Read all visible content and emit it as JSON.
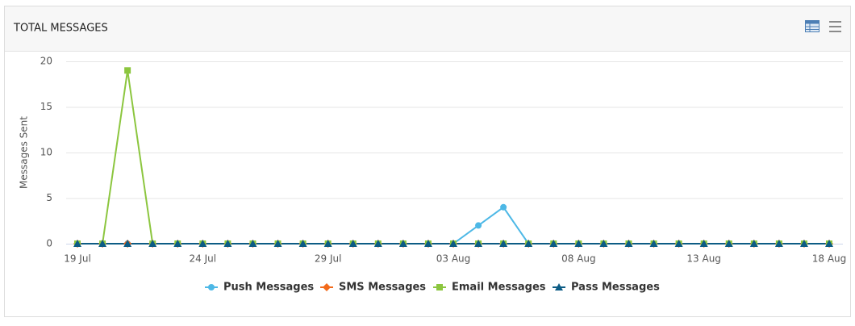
{
  "chart_data": {
    "type": "line",
    "title": "TOTAL MESSAGES",
    "y_label": "Messages Sent",
    "categories": [
      "19 Jul",
      null,
      null,
      null,
      null,
      "24 Jul",
      null,
      null,
      null,
      null,
      "29 Jul",
      null,
      null,
      null,
      null,
      "03 Aug",
      null,
      null,
      null,
      null,
      "08 Aug",
      null,
      null,
      null,
      null,
      "13 Aug",
      null,
      null,
      null,
      null,
      "18 Aug"
    ],
    "ylim": [
      0,
      20
    ],
    "yticks": [
      0,
      5,
      10,
      15,
      20
    ],
    "grid": true,
    "series": [
      {
        "name": "Push Messages",
        "color": "#4db8e6",
        "marker": "circle",
        "values": [
          0,
          0,
          0,
          0,
          0,
          0,
          0,
          0,
          0,
          0,
          0,
          0,
          0,
          0,
          0,
          0,
          2,
          4,
          0,
          0,
          0,
          0,
          0,
          0,
          0,
          0,
          0,
          0,
          0,
          0,
          0
        ]
      },
      {
        "name": "SMS Messages",
        "color": "#f26a1b",
        "marker": "diamond",
        "values": [
          0,
          0,
          0,
          0,
          0,
          0,
          0,
          0,
          0,
          0,
          0,
          0,
          0,
          0,
          0,
          0,
          0,
          0,
          0,
          0,
          0,
          0,
          0,
          0,
          0,
          0,
          0,
          0,
          0,
          0,
          0
        ]
      },
      {
        "name": "Email Messages",
        "color": "#8cc63f",
        "marker": "square",
        "values": [
          0,
          0,
          19,
          0,
          0,
          0,
          0,
          0,
          0,
          0,
          0,
          0,
          0,
          0,
          0,
          0,
          0,
          0,
          0,
          0,
          0,
          0,
          0,
          0,
          0,
          0,
          0,
          0,
          0,
          0,
          0
        ]
      },
      {
        "name": "Pass Messages",
        "color": "#0d5c85",
        "marker": "triangle",
        "values": [
          0,
          0,
          0,
          0,
          0,
          0,
          0,
          0,
          0,
          0,
          0,
          0,
          0,
          0,
          0,
          0,
          0,
          0,
          0,
          0,
          0,
          0,
          0,
          0,
          0,
          0,
          0,
          0,
          0,
          0,
          0
        ]
      }
    ]
  }
}
